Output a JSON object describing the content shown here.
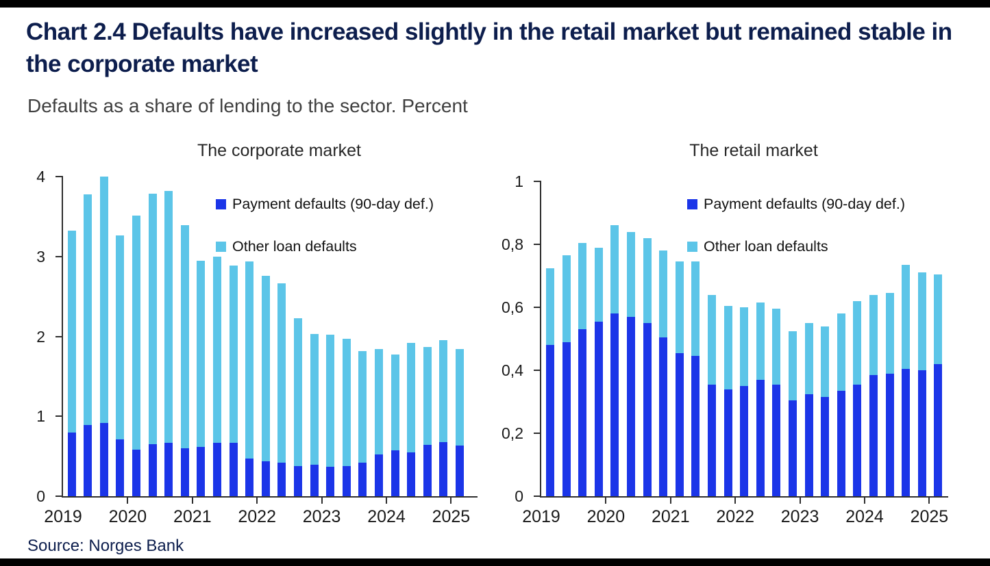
{
  "page": {
    "title": "Chart 2.4 Defaults have increased slightly in the retail market but remained stable in the corporate market",
    "subtitle": "Defaults as a share of lending to the sector. Percent",
    "source": "Source: Norges Bank"
  },
  "colors": {
    "payment_defaults": "#1b35e8",
    "other_loan_defaults": "#5cc5e8",
    "heading_navy": "#0d1e4d",
    "rule_bar": "#000000",
    "axis": "#2e2e2e"
  },
  "chart_data": [
    {
      "type": "bar",
      "stacked": true,
      "title": "The corporate market",
      "xlabel": "",
      "ylabel": "Percent",
      "ylim": [
        0,
        4
      ],
      "grid": false,
      "legend_position": "upper-right-inside",
      "yticks": [
        {
          "value": 0,
          "label": "0"
        },
        {
          "value": 1,
          "label": "1"
        },
        {
          "value": 2,
          "label": "2"
        },
        {
          "value": 3,
          "label": "3"
        },
        {
          "value": 4,
          "label": "4"
        }
      ],
      "year_labels": [
        "2019",
        "2020",
        "2021",
        "2022",
        "2023",
        "2024",
        "2025"
      ],
      "categories": [
        "2019 Q1",
        "2019 Q2",
        "2019 Q3",
        "2019 Q4",
        "2020 Q1",
        "2020 Q2",
        "2020 Q3",
        "2020 Q4",
        "2021 Q1",
        "2021 Q2",
        "2021 Q3",
        "2021 Q4",
        "2022 Q1",
        "2022 Q2",
        "2022 Q3",
        "2022 Q4",
        "2023 Q1",
        "2023 Q2",
        "2023 Q3",
        "2023 Q4",
        "2024 Q1",
        "2024 Q2",
        "2024 Q3",
        "2024 Q4",
        "2025 Q1"
      ],
      "series": [
        {
          "name": "Payment defaults (90-day def.)",
          "color_key": "payment_defaults",
          "values": [
            0.8,
            0.89,
            0.92,
            0.71,
            0.58,
            0.65,
            0.67,
            0.6,
            0.62,
            0.67,
            0.67,
            0.47,
            0.44,
            0.42,
            0.38,
            0.39,
            0.37,
            0.38,
            0.42,
            0.52,
            0.57,
            0.55,
            0.64,
            0.68,
            0.63
          ]
        },
        {
          "name": "Other loan defaults",
          "color_key": "other_loan_defaults",
          "values": [
            2.52,
            2.89,
            3.08,
            2.55,
            2.93,
            3.14,
            3.15,
            2.79,
            2.33,
            2.33,
            2.22,
            2.47,
            2.32,
            2.24,
            1.85,
            1.64,
            1.65,
            1.59,
            1.4,
            1.32,
            1.2,
            1.37,
            1.23,
            1.27,
            1.21
          ]
        }
      ],
      "totals": [
        3.32,
        3.78,
        4.0,
        3.26,
        3.51,
        3.79,
        3.82,
        3.39,
        2.95,
        3.0,
        2.89,
        2.94,
        2.76,
        2.66,
        2.23,
        2.03,
        2.02,
        1.97,
        1.82,
        1.84,
        1.77,
        1.92,
        1.87,
        1.95,
        1.84
      ]
    },
    {
      "type": "bar",
      "stacked": true,
      "title": "The retail market",
      "xlabel": "",
      "ylabel": "Percent",
      "ylim": [
        0,
        1
      ],
      "grid": false,
      "legend_position": "upper-right-inside",
      "yticks": [
        {
          "value": 0,
          "label": "0"
        },
        {
          "value": 0.2,
          "label": "0,2"
        },
        {
          "value": 0.4,
          "label": "0,4"
        },
        {
          "value": 0.6,
          "label": "0,6"
        },
        {
          "value": 0.8,
          "label": "0,8"
        },
        {
          "value": 1,
          "label": "1"
        }
      ],
      "year_labels": [
        "2019",
        "2020",
        "2021",
        "2022",
        "2023",
        "2024",
        "2025"
      ],
      "categories": [
        "2019 Q1",
        "2019 Q2",
        "2019 Q3",
        "2019 Q4",
        "2020 Q1",
        "2020 Q2",
        "2020 Q3",
        "2020 Q4",
        "2021 Q1",
        "2021 Q2",
        "2021 Q3",
        "2021 Q4",
        "2022 Q1",
        "2022 Q2",
        "2022 Q3",
        "2022 Q4",
        "2023 Q1",
        "2023 Q2",
        "2023 Q3",
        "2023 Q4",
        "2024 Q1",
        "2024 Q2",
        "2024 Q3",
        "2024 Q4",
        "2025 Q1"
      ],
      "series": [
        {
          "name": "Payment defaults (90-day def.)",
          "color_key": "payment_defaults",
          "values": [
            0.48,
            0.49,
            0.53,
            0.555,
            0.58,
            0.57,
            0.55,
            0.505,
            0.455,
            0.445,
            0.355,
            0.34,
            0.35,
            0.37,
            0.355,
            0.305,
            0.325,
            0.315,
            0.335,
            0.355,
            0.385,
            0.39,
            0.405,
            0.4,
            0.42
          ]
        },
        {
          "name": "Other loan defaults",
          "color_key": "other_loan_defaults",
          "values": [
            0.245,
            0.275,
            0.275,
            0.235,
            0.28,
            0.27,
            0.27,
            0.275,
            0.29,
            0.3,
            0.285,
            0.265,
            0.25,
            0.245,
            0.24,
            0.22,
            0.225,
            0.225,
            0.245,
            0.265,
            0.255,
            0.255,
            0.33,
            0.31,
            0.285
          ]
        }
      ],
      "totals": [
        0.725,
        0.765,
        0.805,
        0.79,
        0.86,
        0.84,
        0.82,
        0.78,
        0.745,
        0.745,
        0.64,
        0.605,
        0.6,
        0.615,
        0.595,
        0.525,
        0.55,
        0.54,
        0.58,
        0.62,
        0.64,
        0.645,
        0.735,
        0.71,
        0.705
      ]
    }
  ]
}
